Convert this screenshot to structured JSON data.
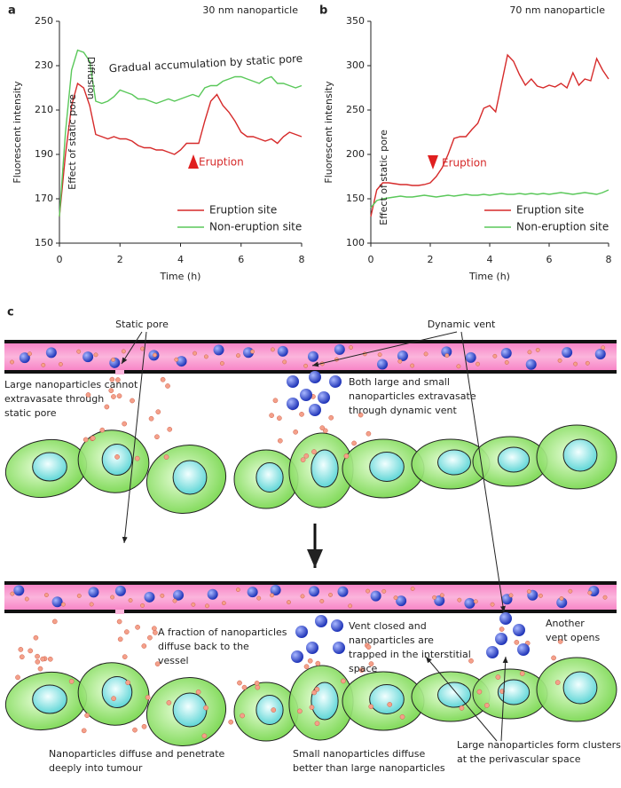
{
  "chart_data": [
    {
      "type": "line",
      "panel_label": "a",
      "title": "30 nm nanoparticle",
      "xlabel": "Time (h)",
      "ylabel": "Fluorescent intensity",
      "x": [
        0,
        0.2,
        0.4,
        0.6,
        0.8,
        1,
        1.2,
        1.4,
        1.6,
        1.8,
        2,
        2.2,
        2.4,
        2.6,
        2.8,
        3,
        3.2,
        3.4,
        3.6,
        3.8,
        4,
        4.2,
        4.4,
        4.6,
        4.8,
        5,
        5.2,
        5.4,
        5.6,
        5.8,
        6,
        6.2,
        6.4,
        6.6,
        6.8,
        7,
        7.2,
        7.4,
        7.6,
        7.8,
        8
      ],
      "series": [
        {
          "name": "Eruption site",
          "color": "#d62a2a",
          "values": [
            162,
            190,
            212,
            222,
            220,
            212,
            199,
            198,
            197,
            198,
            197,
            197,
            196,
            194,
            193,
            193,
            192,
            192,
            191,
            190,
            192,
            195,
            195,
            195,
            205,
            214,
            217,
            212,
            209,
            205,
            200,
            198,
            198,
            197,
            196,
            197,
            195,
            198,
            200,
            199,
            198
          ]
        },
        {
          "name": "Non-eruption site",
          "color": "#5ac85a",
          "values": [
            162,
            200,
            228,
            237,
            236,
            232,
            214,
            213,
            214,
            216,
            219,
            218,
            217,
            215,
            215,
            214,
            213,
            214,
            215,
            214,
            215,
            216,
            217,
            216,
            220,
            221,
            221,
            223,
            224,
            225,
            225,
            224,
            223,
            222,
            224,
            225,
            222,
            222,
            221,
            220,
            221
          ]
        }
      ],
      "xlim": [
        0,
        8
      ],
      "xticks": [
        0,
        2,
        4,
        6,
        8
      ],
      "ylim": [
        150,
        250
      ],
      "yticks": [
        150,
        170,
        190,
        210,
        230,
        250
      ],
      "annotations": [
        "Effect of static pore",
        "Diffusion",
        "Gradual accumulation by static pore",
        "Eruption"
      ],
      "legend": "lower right"
    },
    {
      "type": "line",
      "panel_label": "b",
      "title": "70 nm nanoparticle",
      "xlabel": "Time (h)",
      "ylabel": "Fluorescent intensity",
      "x": [
        0,
        0.2,
        0.4,
        0.6,
        0.8,
        1,
        1.2,
        1.4,
        1.6,
        1.8,
        2,
        2.2,
        2.4,
        2.6,
        2.8,
        3,
        3.2,
        3.4,
        3.6,
        3.8,
        4,
        4.2,
        4.4,
        4.6,
        4.8,
        5,
        5.2,
        5.4,
        5.6,
        5.8,
        6,
        6.2,
        6.4,
        6.6,
        6.8,
        7,
        7.2,
        7.4,
        7.6,
        7.8,
        8
      ],
      "series": [
        {
          "name": "Eruption site",
          "color": "#d62a2a",
          "values": [
            130,
            160,
            168,
            168,
            167,
            166,
            166,
            165,
            165,
            166,
            168,
            175,
            185,
            200,
            218,
            220,
            220,
            228,
            235,
            252,
            255,
            248,
            280,
            312,
            305,
            290,
            278,
            285,
            277,
            275,
            278,
            276,
            280,
            275,
            292,
            278,
            285,
            283,
            308,
            295,
            285
          ]
        },
        {
          "name": "Non-eruption site",
          "color": "#5ac85a",
          "values": [
            140,
            148,
            150,
            151,
            152,
            153,
            152,
            152,
            153,
            154,
            153,
            152,
            153,
            154,
            153,
            154,
            155,
            154,
            154,
            155,
            154,
            155,
            156,
            155,
            155,
            156,
            155,
            156,
            155,
            156,
            155,
            156,
            157,
            156,
            155,
            156,
            157,
            156,
            155,
            157,
            160
          ]
        }
      ],
      "xlim": [
        0,
        8
      ],
      "xticks": [
        0,
        2,
        4,
        6,
        8
      ],
      "ylim": [
        100,
        350
      ],
      "yticks": [
        100,
        150,
        200,
        250,
        300,
        350
      ],
      "annotations": [
        "Effect of static pore",
        "Eruption"
      ],
      "legend": "lower right"
    }
  ],
  "diagram": {
    "panel_label": "c",
    "labels": [
      "Static pore",
      "Dynamic vent",
      [
        "Large nanoparticles cannot",
        "extravasate through",
        "static pore"
      ],
      [
        "Both large and small",
        "nanoparticles extravasate",
        "through dynamic vent"
      ],
      [
        "A fraction of nanoparticles",
        "diffuse back to the",
        "vessel"
      ],
      [
        "Vent closed and",
        "nanoparticles are",
        "trapped in the interstitial",
        "space"
      ],
      [
        "Another",
        "vent opens"
      ],
      [
        "Nanoparticles diffuse and penetrate",
        "deeply into tumour"
      ],
      [
        "Small nanoparticles diffuse",
        "better than large nanoparticles"
      ],
      [
        "Large nanoparticles form clusters",
        "at the perivascular space"
      ]
    ]
  }
}
